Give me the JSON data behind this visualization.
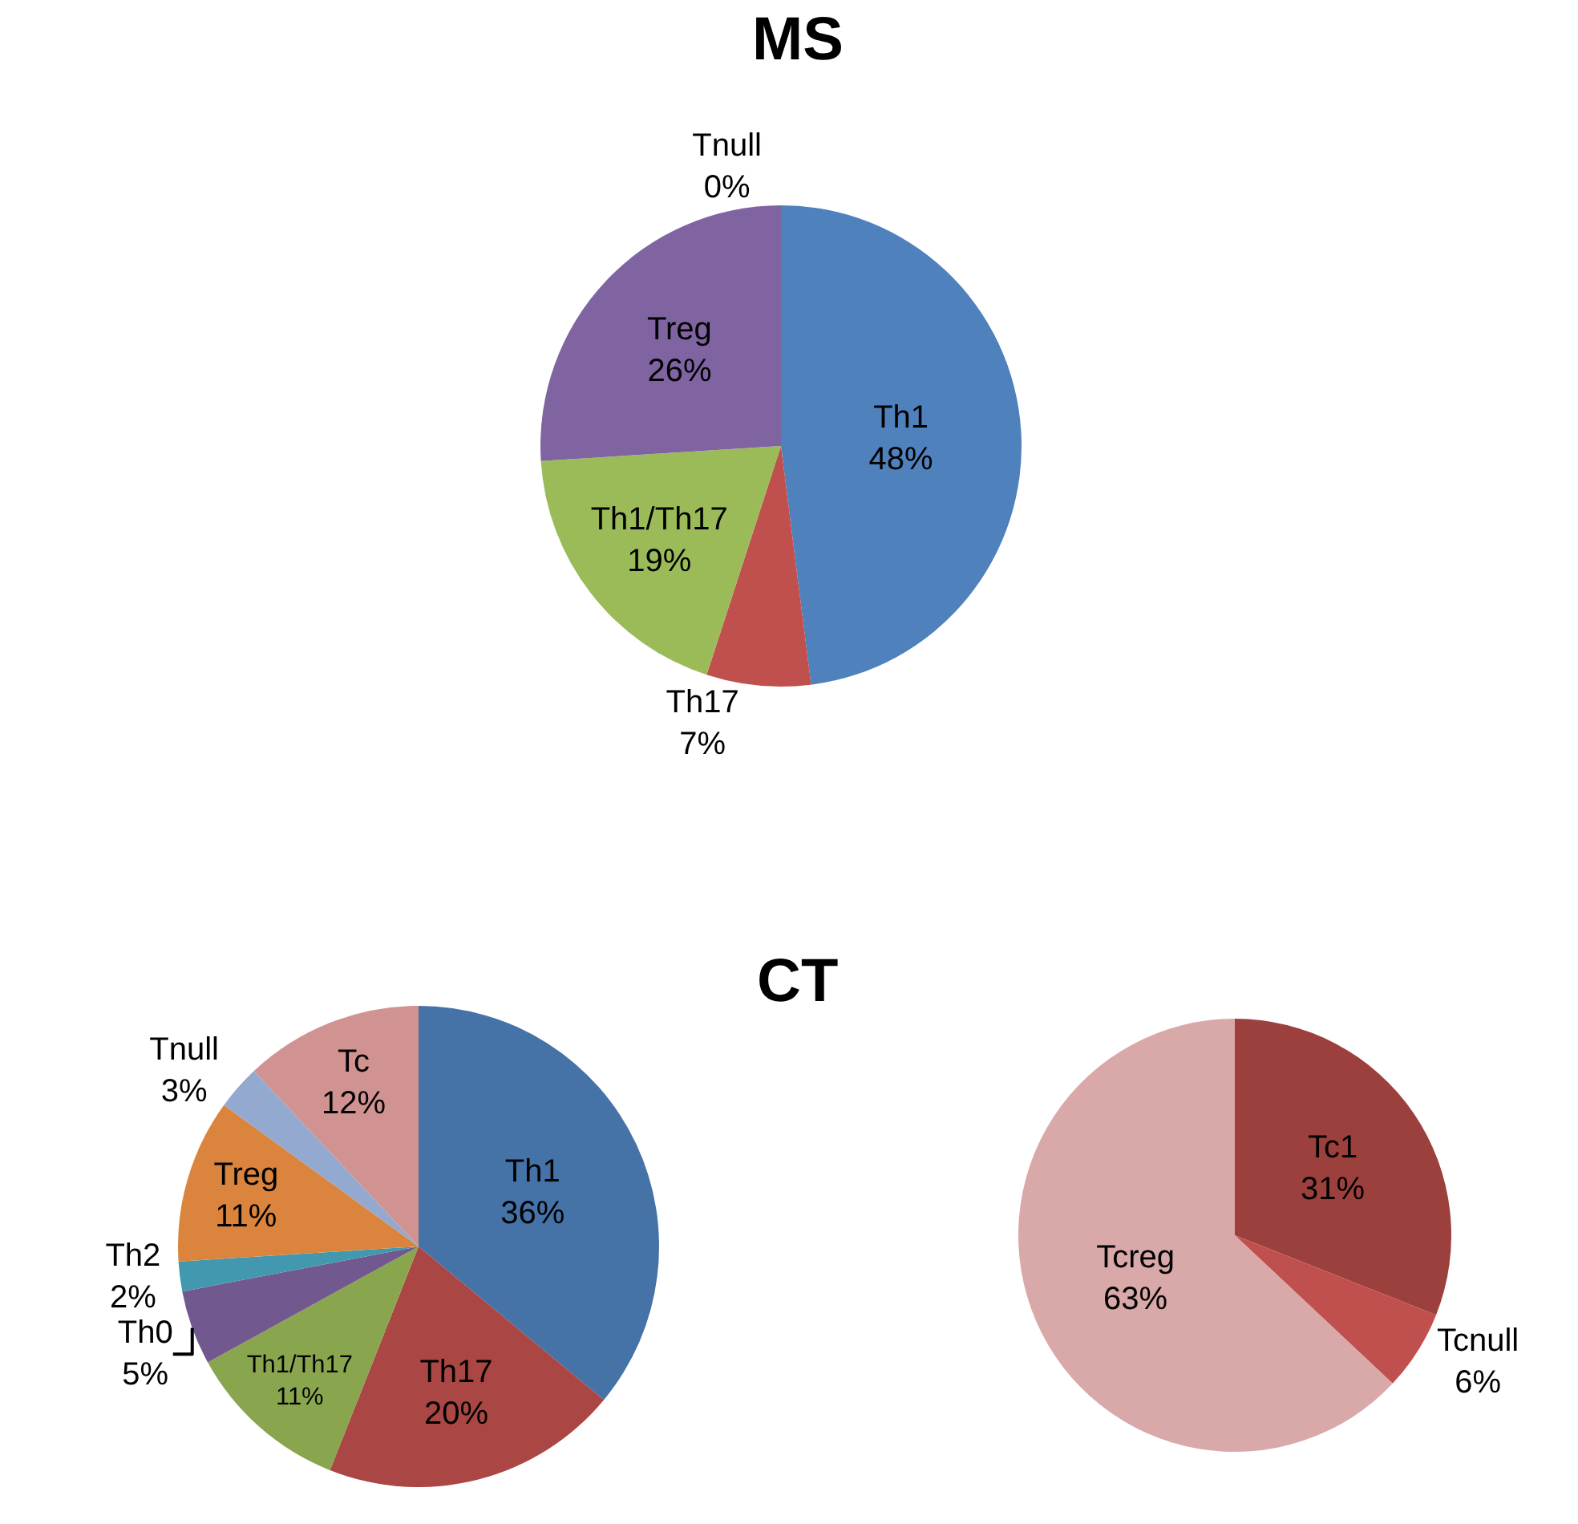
{
  "chart_data": [
    {
      "type": "pie",
      "title": "MS",
      "categories": [
        "Th1",
        "Th17",
        "Th1/Th17",
        "Treg",
        "Tnull"
      ],
      "values": [
        48,
        7,
        19,
        26,
        0
      ],
      "value_labels": [
        "48%",
        "7%",
        "19%",
        "26%",
        "0%"
      ],
      "colors": [
        "#4f81bd",
        "#c0504d",
        "#9bbb59",
        "#8064a2",
        "#f79646"
      ]
    },
    {
      "type": "pie",
      "title": "CT",
      "categories": [
        "Th1",
        "Th17",
        "Th1/Th17",
        "Th0",
        "Th2",
        "Treg",
        "Tnull",
        "Tc"
      ],
      "values": [
        36,
        20,
        11,
        5,
        2,
        11,
        3,
        12
      ],
      "value_labels": [
        "36%",
        "20%",
        "11%",
        "5%",
        "2%",
        "11%",
        "3%",
        "12%"
      ],
      "colors": [
        "#4572a7",
        "#aa4643",
        "#89a54e",
        "#71588f",
        "#4198af",
        "#db843d",
        "#93a9cf",
        "#d19392"
      ]
    },
    {
      "type": "pie",
      "categories": [
        "Tc1",
        "Tcnull",
        "Tcreg"
      ],
      "values": [
        31,
        6,
        63
      ],
      "value_labels": [
        "31%",
        "6%",
        "63%"
      ],
      "colors": [
        "#9c403d",
        "#c0504d",
        "#d9a8a8"
      ]
    }
  ]
}
